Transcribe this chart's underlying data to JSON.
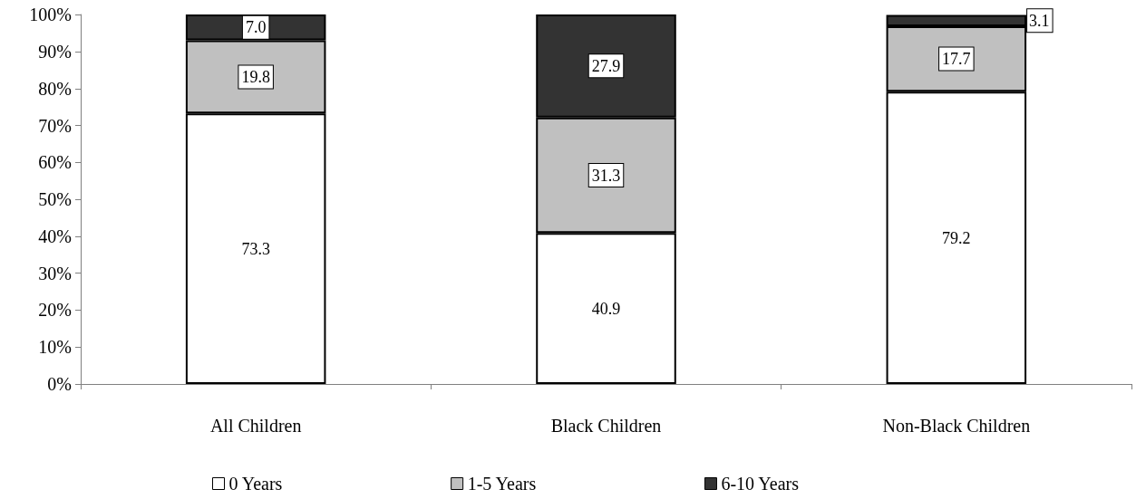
{
  "chart_data": {
    "type": "bar",
    "stacked": true,
    "categories": [
      "All Children",
      "Black Children",
      "Non-Black Children"
    ],
    "series": [
      {
        "name": "0 Years",
        "color": "#ffffff",
        "values": [
          73.3,
          40.9,
          79.2
        ],
        "value_labels": [
          "73.3",
          "40.9",
          "79.2"
        ]
      },
      {
        "name": "1-5 Years",
        "color": "#c0c0c0",
        "values": [
          19.8,
          31.3,
          17.7
        ],
        "value_labels": [
          "19.8",
          "31.3",
          "17.7"
        ]
      },
      {
        "name": "6-10 Years",
        "color": "#333333",
        "values": [
          7.0,
          27.9,
          3.1
        ],
        "value_labels": [
          "7.0",
          "27.9",
          "3.1"
        ]
      }
    ],
    "ylim": [
      0,
      100.1
    ],
    "yticks": [
      {
        "value": 0,
        "label": "0%"
      },
      {
        "value": 10,
        "label": "10%"
      },
      {
        "value": 20,
        "label": "20%"
      },
      {
        "value": 30,
        "label": "30%"
      },
      {
        "value": 40,
        "label": "40%"
      },
      {
        "value": 50,
        "label": "50%"
      },
      {
        "value": 60,
        "label": "60%"
      },
      {
        "value": 70,
        "label": "70%"
      },
      {
        "value": 80,
        "label": "80%"
      },
      {
        "value": 90,
        "label": "90%"
      },
      {
        "value": 100,
        "label": "100%"
      }
    ],
    "legend": "bottom"
  }
}
